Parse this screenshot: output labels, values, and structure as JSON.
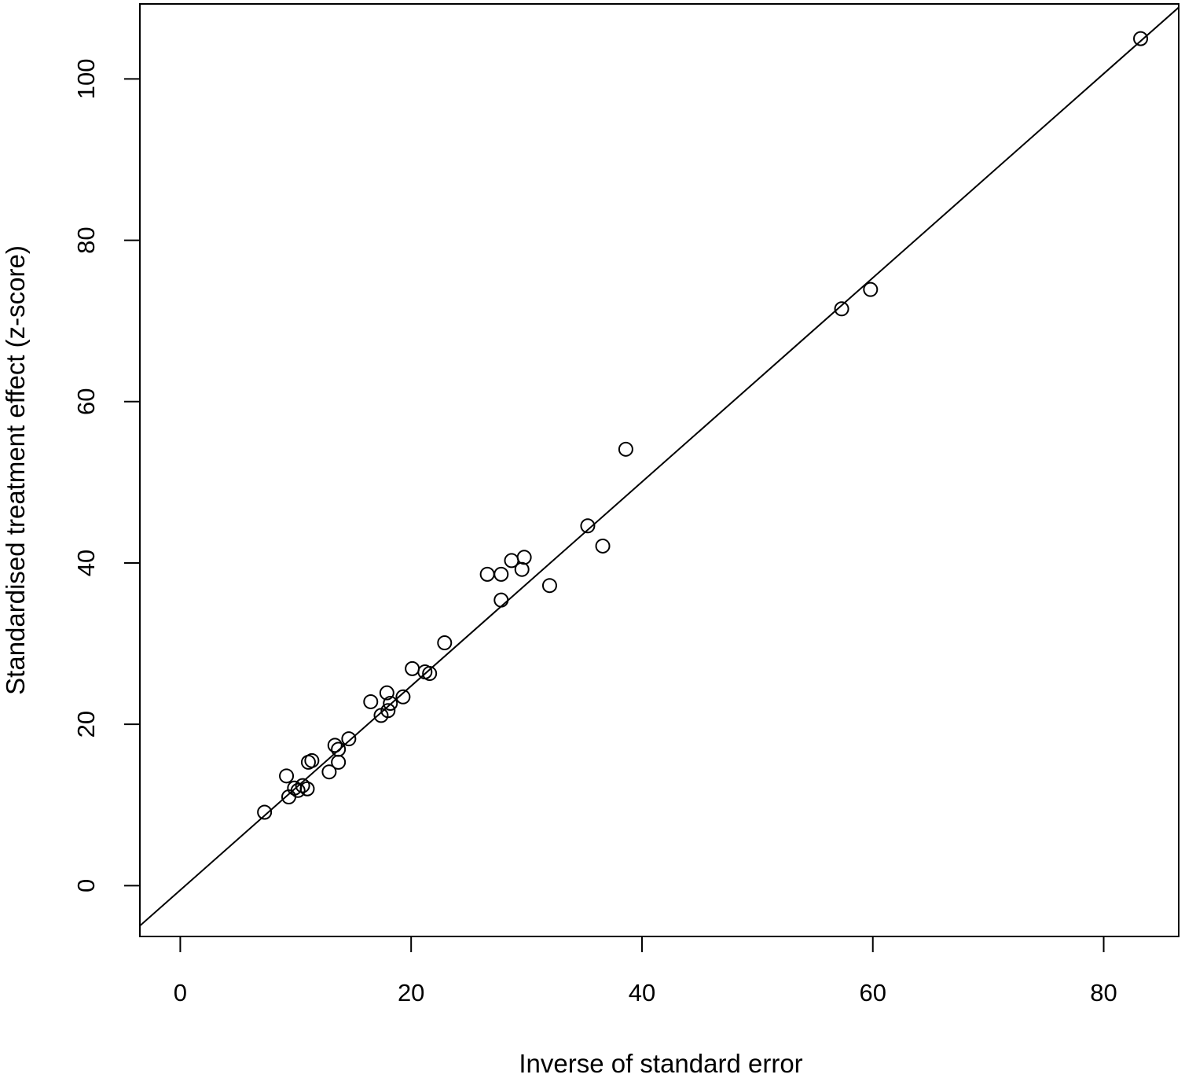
{
  "chart_data": {
    "type": "scatter",
    "title": "",
    "xlabel": "Inverse of standard error",
    "ylabel": "Standardised treatment effect (z-score)",
    "xlim": [
      -3.5,
      86.5
    ],
    "ylim": [
      -6.3,
      109.3
    ],
    "xticks": [
      0,
      20,
      40,
      60,
      80
    ],
    "yticks": [
      0,
      20,
      40,
      60,
      80,
      100
    ],
    "xtick_labels": [
      "0",
      "20",
      "40",
      "60",
      "80"
    ],
    "ytick_labels": [
      "0",
      "20",
      "40",
      "60",
      "80",
      "100"
    ],
    "grid": false,
    "legend": "none",
    "marker": "open-circle",
    "color": "#000000",
    "points": [
      {
        "x": 7.3,
        "y": 9.1
      },
      {
        "x": 9.2,
        "y": 13.6
      },
      {
        "x": 9.4,
        "y": 11.0
      },
      {
        "x": 9.9,
        "y": 12.1
      },
      {
        "x": 10.2,
        "y": 11.8
      },
      {
        "x": 10.6,
        "y": 12.4
      },
      {
        "x": 11.0,
        "y": 12.0
      },
      {
        "x": 11.1,
        "y": 15.3
      },
      {
        "x": 11.4,
        "y": 15.5
      },
      {
        "x": 12.9,
        "y": 14.1
      },
      {
        "x": 13.4,
        "y": 17.4
      },
      {
        "x": 13.7,
        "y": 16.9
      },
      {
        "x": 13.7,
        "y": 15.3
      },
      {
        "x": 14.6,
        "y": 18.2
      },
      {
        "x": 16.5,
        "y": 22.8
      },
      {
        "x": 17.4,
        "y": 21.1
      },
      {
        "x": 17.9,
        "y": 23.9
      },
      {
        "x": 18.0,
        "y": 21.7
      },
      {
        "x": 18.2,
        "y": 22.6
      },
      {
        "x": 19.3,
        "y": 23.4
      },
      {
        "x": 20.1,
        "y": 26.9
      },
      {
        "x": 21.2,
        "y": 26.5
      },
      {
        "x": 21.6,
        "y": 26.3
      },
      {
        "x": 22.9,
        "y": 30.1
      },
      {
        "x": 26.6,
        "y": 38.6
      },
      {
        "x": 27.8,
        "y": 38.6
      },
      {
        "x": 27.8,
        "y": 35.4
      },
      {
        "x": 28.7,
        "y": 40.3
      },
      {
        "x": 29.6,
        "y": 39.2
      },
      {
        "x": 29.8,
        "y": 40.7
      },
      {
        "x": 32.0,
        "y": 37.2
      },
      {
        "x": 35.3,
        "y": 44.6
      },
      {
        "x": 36.6,
        "y": 42.1
      },
      {
        "x": 38.6,
        "y": 54.1
      },
      {
        "x": 57.3,
        "y": 71.5
      },
      {
        "x": 59.8,
        "y": 73.9
      },
      {
        "x": 83.2,
        "y": 105.0
      }
    ],
    "fit_line": {
      "intercept": -0.55,
      "slope": 1.265
    }
  }
}
